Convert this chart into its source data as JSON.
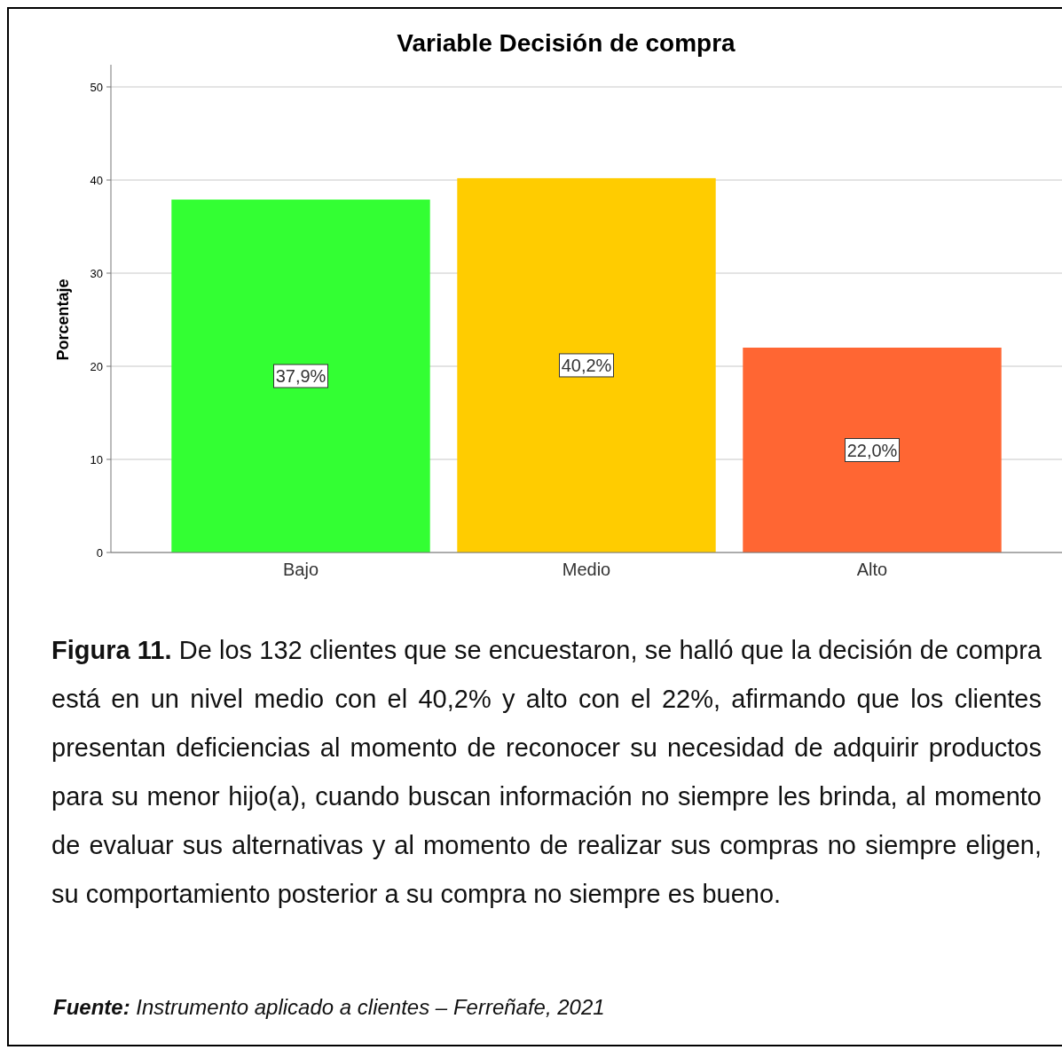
{
  "chart_data": {
    "type": "bar",
    "title": "Variable Decisión de compra",
    "ylabel": "Porcentaje",
    "categories": [
      "Bajo",
      "Medio",
      "Alto"
    ],
    "values": [
      37.9,
      40.2,
      22.0
    ],
    "colors": [
      "#33ff33",
      "#ffcc00",
      "#ff6633"
    ],
    "value_labels": [
      "37,9%",
      "40,2%",
      "22,0%"
    ],
    "ylim": [
      0,
      50
    ],
    "yticks": [
      0,
      10,
      20,
      30,
      40,
      50
    ],
    "grid": "y",
    "annotations": [
      "Figura 11.",
      "De los 132 clientes que se encuestaron, se halló que la decisión de compra está en un nivel medio con el 40,2% y alto con el 22%, afirmando que los clientes presentan deficiencias al momento de reconocer su necesidad de adquirir productos para su menor hijo(a), cuando buscan información no siempre les brinda, al momento de evaluar sus alternativas y al momento de realizar sus compras no siempre eligen, su comportamiento posterior a su compra no siempre es bueno.",
      "Fuente:",
      "Instrumento aplicado a clientes – Ferreñafe, 2021"
    ]
  }
}
